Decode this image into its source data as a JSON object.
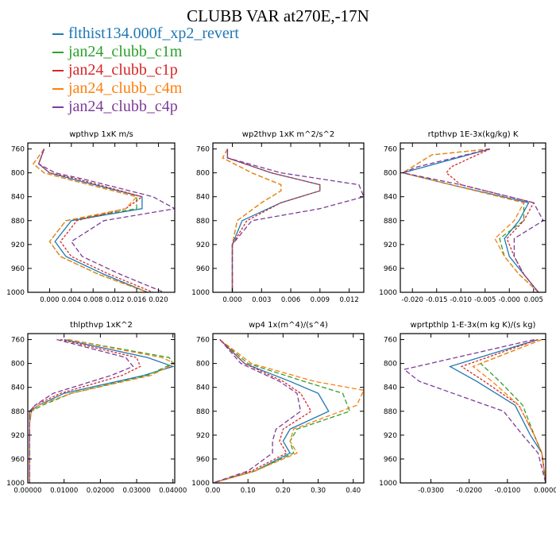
{
  "title": "CLUBB VAR at270E,-17N",
  "legend": [
    {
      "name": "flthist134.000f_xp2_revert",
      "color": "#1f77b4"
    },
    {
      "name": "jan24_clubb_c1m",
      "color": "#2ca02c"
    },
    {
      "name": "jan24_clubb_c1p",
      "color": "#d62728"
    },
    {
      "name": "jan24_clubb_c4m",
      "color": "#ff7f0e"
    },
    {
      "name": "jan24_clubb_c4p",
      "color": "#7d3c98"
    }
  ],
  "chart_data": [
    {
      "type": "line",
      "title": "wpthvp  1xK m/s",
      "xlim": [
        -0.004,
        0.023
      ],
      "ylim": [
        1000,
        750
      ],
      "xticks": [
        "0.000",
        "0.004",
        "0.008",
        "0.012",
        "0.016",
        "0.020"
      ],
      "xtick_values": [
        0,
        0.004,
        0.008,
        0.012,
        0.016,
        0.02
      ],
      "yticks": [
        760,
        800,
        840,
        880,
        920,
        960,
        1000
      ],
      "series": [
        {
          "name": "flthist134.000f_xp2_revert",
          "y": [
            760,
            785,
            800,
            810,
            840,
            860,
            880,
            915,
            940,
            970,
            1000
          ],
          "x": [
            -0.001,
            -0.002,
            0.0,
            0.004,
            0.017,
            0.017,
            0.004,
            0.001,
            0.003,
            0.01,
            0.018
          ]
        },
        {
          "name": "jan24_clubb_c1m",
          "y": [
            760,
            785,
            800,
            810,
            840,
            860,
            880,
            915,
            940,
            970,
            1000
          ],
          "x": [
            -0.001,
            -0.003,
            -0.001,
            0.003,
            0.016,
            0.016,
            0.003,
            0.0,
            0.002,
            0.009,
            0.018
          ]
        },
        {
          "name": "jan24_clubb_c1p",
          "y": [
            760,
            785,
            800,
            810,
            840,
            860,
            880,
            915,
            940,
            970,
            1000
          ],
          "x": [
            -0.001,
            -0.002,
            0.0,
            0.005,
            0.017,
            0.014,
            0.005,
            0.002,
            0.004,
            0.011,
            0.019
          ]
        },
        {
          "name": "jan24_clubb_c4m",
          "y": [
            760,
            785,
            800,
            810,
            840,
            860,
            880,
            915,
            940,
            970,
            1000
          ],
          "x": [
            -0.001,
            -0.003,
            -0.001,
            0.003,
            0.016,
            0.014,
            0.003,
            0.0,
            0.002,
            0.009,
            0.018
          ]
        },
        {
          "name": "jan24_clubb_c4p",
          "y": [
            760,
            785,
            800,
            810,
            840,
            860,
            880,
            915,
            940,
            970,
            1000
          ],
          "x": [
            -0.001,
            -0.002,
            0.001,
            0.006,
            0.019,
            0.023,
            0.01,
            0.004,
            0.006,
            0.013,
            0.021
          ]
        }
      ]
    },
    {
      "type": "line",
      "title": "wp2thvp  1xK m^2/s^2",
      "xlim": [
        -0.002,
        0.0135
      ],
      "ylim": [
        1000,
        750
      ],
      "xticks": [
        "0.000",
        "0.003",
        "0.006",
        "0.009",
        "0.012"
      ],
      "xtick_values": [
        0,
        0.003,
        0.006,
        0.009,
        0.012
      ],
      "yticks": [
        760,
        800,
        840,
        880,
        920,
        960,
        1000
      ],
      "series": [
        {
          "name": "flthist134.000f_xp2_revert",
          "y": [
            760,
            775,
            800,
            820,
            830,
            850,
            880,
            920,
            960,
            1000
          ],
          "x": [
            -0.0005,
            -0.0005,
            0.004,
            0.009,
            0.009,
            0.005,
            0.001,
            0.0,
            0.0,
            0.0
          ]
        },
        {
          "name": "jan24_clubb_c1m",
          "y": [
            760,
            775,
            800,
            820,
            830,
            850,
            880,
            920,
            960,
            1000
          ],
          "x": [
            -0.0005,
            -0.001,
            0.002,
            0.005,
            0.005,
            0.003,
            0.0005,
            0.0,
            0.0,
            0.0
          ]
        },
        {
          "name": "jan24_clubb_c1p",
          "y": [
            760,
            775,
            800,
            820,
            830,
            850,
            880,
            920,
            960,
            1000
          ],
          "x": [
            -0.0005,
            -0.0005,
            0.004,
            0.009,
            0.009,
            0.005,
            0.0015,
            0.0,
            0.0,
            0.0
          ]
        },
        {
          "name": "jan24_clubb_c4m",
          "y": [
            760,
            775,
            800,
            820,
            830,
            850,
            880,
            920,
            960,
            1000
          ],
          "x": [
            -0.0005,
            -0.001,
            0.002,
            0.005,
            0.005,
            0.003,
            0.0005,
            0.0,
            0.0,
            0.0
          ]
        },
        {
          "name": "jan24_clubb_c4p",
          "y": [
            760,
            775,
            800,
            820,
            840,
            860,
            880,
            920,
            960,
            1000
          ],
          "x": [
            -0.0005,
            -0.0005,
            0.005,
            0.013,
            0.0135,
            0.009,
            0.002,
            0.0,
            0.0,
            0.0
          ]
        }
      ]
    },
    {
      "type": "line",
      "title": "rtpthvp  1E-3x(kg/kg) K",
      "xlim": [
        -0.0225,
        0.0075
      ],
      "ylim": [
        1000,
        750
      ],
      "xticks": [
        "-0.020",
        "-0.015",
        "-0.010",
        "-0.005",
        "-0.000",
        "0.005"
      ],
      "xtick_values": [
        -0.02,
        -0.015,
        -0.01,
        -0.005,
        0.0,
        0.005
      ],
      "yticks": [
        760,
        800,
        840,
        880,
        920,
        960,
        1000
      ],
      "series": [
        {
          "name": "flthist134.000f_xp2_revert",
          "y": [
            760,
            800,
            820,
            850,
            880,
            910,
            940,
            970,
            1000
          ],
          "x": [
            -0.004,
            -0.022,
            -0.012,
            0.004,
            0.002,
            -0.001,
            0.0,
            0.003,
            0.006
          ]
        },
        {
          "name": "jan24_clubb_c1m",
          "y": [
            760,
            770,
            790,
            800,
            820,
            850,
            880,
            910,
            940,
            970,
            1000
          ],
          "x": [
            -0.004,
            -0.016,
            -0.02,
            -0.022,
            -0.012,
            0.003,
            0.003,
            -0.002,
            -0.001,
            0.002,
            0.006
          ]
        },
        {
          "name": "jan24_clubb_c1p",
          "y": [
            760,
            790,
            800,
            820,
            850,
            880,
            910,
            940,
            970,
            1000
          ],
          "x": [
            -0.004,
            -0.012,
            -0.013,
            -0.01,
            0.005,
            0.003,
            -0.0005,
            0.001,
            0.003,
            0.006
          ]
        },
        {
          "name": "jan24_clubb_c4m",
          "y": [
            760,
            770,
            790,
            800,
            820,
            850,
            880,
            910,
            940,
            970,
            1000
          ],
          "x": [
            -0.004,
            -0.016,
            -0.02,
            -0.022,
            -0.012,
            0.003,
            0.001,
            -0.003,
            -0.001,
            0.002,
            0.006
          ]
        },
        {
          "name": "jan24_clubb_c4p",
          "y": [
            760,
            790,
            800,
            820,
            850,
            880,
            910,
            940,
            970,
            1000
          ],
          "x": [
            -0.004,
            -0.019,
            -0.022,
            -0.01,
            0.005,
            0.007,
            0.001,
            0.001,
            0.003,
            0.006
          ]
        }
      ]
    },
    {
      "type": "line",
      "title": "thlpthvp  1xK^2",
      "xlim": [
        0,
        0.0405
      ],
      "ylim": [
        1000,
        750
      ],
      "xticks": [
        "0.00000",
        "0.01000",
        "0.02000",
        "0.03000",
        "0.04000"
      ],
      "xtick_values": [
        0,
        0.01,
        0.02,
        0.03,
        0.04
      ],
      "yticks": [
        760,
        800,
        840,
        880,
        920,
        960,
        1000
      ],
      "series": [
        {
          "name": "flthist134.000f_xp2_revert",
          "y": [
            760,
            790,
            805,
            820,
            850,
            870,
            880,
            900,
            1000
          ],
          "x": [
            0.01,
            0.033,
            0.04,
            0.032,
            0.01,
            0.003,
            0.0005,
            0.0005,
            0.0005
          ]
        },
        {
          "name": "jan24_clubb_c1m",
          "y": [
            760,
            790,
            800,
            820,
            850,
            870,
            880,
            900,
            1000
          ],
          "x": [
            0.011,
            0.039,
            0.04,
            0.033,
            0.012,
            0.004,
            0.001,
            0.0005,
            0.0005
          ]
        },
        {
          "name": "jan24_clubb_c1p",
          "y": [
            760,
            790,
            805,
            820,
            850,
            870,
            880,
            900,
            1000
          ],
          "x": [
            0.009,
            0.03,
            0.031,
            0.026,
            0.009,
            0.002,
            0.0005,
            0.0005,
            0.0005
          ]
        },
        {
          "name": "jan24_clubb_c4m",
          "y": [
            760,
            790,
            800,
            820,
            850,
            870,
            880,
            900,
            1000
          ],
          "x": [
            0.011,
            0.037,
            0.0405,
            0.034,
            0.012,
            0.003,
            0.001,
            0.0005,
            0.0005
          ]
        },
        {
          "name": "jan24_clubb_c4p",
          "y": [
            760,
            790,
            805,
            820,
            850,
            870,
            880,
            900,
            1000
          ],
          "x": [
            0.008,
            0.027,
            0.029,
            0.023,
            0.007,
            0.002,
            0.0005,
            0.0005,
            0.0005
          ]
        }
      ]
    },
    {
      "type": "line",
      "title": "wp4  1x(m^4)/(s^4)",
      "xlim": [
        0,
        0.43
      ],
      "ylim": [
        1000,
        750
      ],
      "xticks": [
        "0.00",
        "0.10",
        "0.20",
        "0.30",
        "0.40"
      ],
      "xtick_values": [
        0,
        0.1,
        0.2,
        0.3,
        0.4
      ],
      "yticks": [
        760,
        800,
        840,
        880,
        920,
        960,
        1000
      ],
      "series": [
        {
          "name": "flthist134.000f_xp2_revert",
          "y": [
            760,
            800,
            830,
            850,
            880,
            910,
            930,
            950,
            980,
            1000
          ],
          "x": [
            0.02,
            0.09,
            0.22,
            0.3,
            0.33,
            0.22,
            0.2,
            0.22,
            0.12,
            0.0
          ]
        },
        {
          "name": "jan24_clubb_c1m",
          "y": [
            760,
            800,
            830,
            850,
            880,
            910,
            930,
            950,
            980,
            1000
          ],
          "x": [
            0.02,
            0.1,
            0.26,
            0.37,
            0.39,
            0.24,
            0.22,
            0.23,
            0.12,
            0.0
          ]
        },
        {
          "name": "jan24_clubb_c1p",
          "y": [
            760,
            800,
            830,
            850,
            880,
            910,
            930,
            950,
            980,
            1000
          ],
          "x": [
            0.02,
            0.09,
            0.2,
            0.25,
            0.28,
            0.2,
            0.19,
            0.21,
            0.11,
            0.0
          ]
        },
        {
          "name": "jan24_clubb_c4m",
          "y": [
            760,
            800,
            830,
            845,
            870,
            910,
            930,
            950,
            980,
            1000
          ],
          "x": [
            0.02,
            0.11,
            0.29,
            0.43,
            0.41,
            0.23,
            0.22,
            0.24,
            0.12,
            0.0
          ]
        },
        {
          "name": "jan24_clubb_c4p",
          "y": [
            760,
            800,
            830,
            850,
            880,
            910,
            930,
            950,
            980,
            1000
          ],
          "x": [
            0.02,
            0.08,
            0.19,
            0.24,
            0.25,
            0.18,
            0.17,
            0.17,
            0.1,
            0.0
          ]
        }
      ]
    },
    {
      "type": "line",
      "title": "wprtpthlp  1-E-3x(m kg K)/(s kg)",
      "xlim": [
        -0.038,
        0.0
      ],
      "ylim": [
        1000,
        750
      ],
      "xticks": [
        "-0.0300",
        "-0.0200",
        "-0.0100",
        "0.0000"
      ],
      "xtick_values": [
        -0.03,
        -0.02,
        -0.01,
        0.0
      ],
      "yticks": [
        760,
        800,
        840,
        880,
        920,
        960,
        1000
      ],
      "series": [
        {
          "name": "flthist134.000f_xp2_revert",
          "y": [
            760,
            805,
            830,
            870,
            920,
            950,
            1000
          ],
          "x": [
            -0.002,
            -0.025,
            -0.018,
            -0.008,
            -0.004,
            -0.001,
            0.0
          ]
        },
        {
          "name": "jan24_clubb_c1m",
          "y": [
            760,
            800,
            830,
            870,
            920,
            950,
            1000
          ],
          "x": [
            -0.001,
            -0.017,
            -0.012,
            -0.006,
            -0.003,
            -0.001,
            0.0
          ]
        },
        {
          "name": "jan24_clubb_c1p",
          "y": [
            760,
            805,
            830,
            870,
            920,
            950,
            1000
          ],
          "x": [
            -0.002,
            -0.022,
            -0.016,
            -0.007,
            -0.003,
            -0.001,
            0.0
          ]
        },
        {
          "name": "jan24_clubb_c4m",
          "y": [
            760,
            805,
            830,
            870,
            920,
            950,
            1000
          ],
          "x": [
            -0.001,
            -0.019,
            -0.014,
            -0.007,
            -0.003,
            -0.001,
            0.0
          ]
        },
        {
          "name": "jan24_clubb_c4p",
          "y": [
            760,
            810,
            830,
            880,
            920,
            950,
            1000
          ],
          "x": [
            -0.003,
            -0.037,
            -0.033,
            -0.011,
            -0.006,
            -0.002,
            0.0
          ]
        }
      ]
    }
  ]
}
